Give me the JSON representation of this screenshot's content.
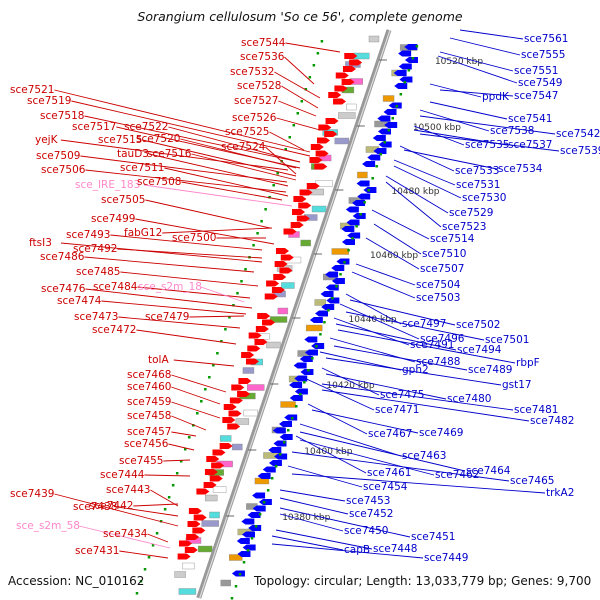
{
  "title": "Sorangium cellulosum 'So ce 56', complete genome",
  "footer": {
    "accession": "Accession: NC_010162",
    "summary": "Topology: circular; Length: 13,033,779 bp; Genes: 9,700"
  },
  "colors": {
    "backbone": "#999999",
    "forward_gene": "#ff0000",
    "reverse_gene": "#0000ff",
    "left_label": "#cc0000",
    "right_label": "#0000cc",
    "rna_label": "#ff88cc",
    "tick": "#009900",
    "kbp_label": "#333333"
  },
  "scale_ticks": [
    {
      "label": "10520 kbp"
    },
    {
      "label": "10500 kbp"
    },
    {
      "label": "10480 kbp"
    },
    {
      "label": "10460 kbp"
    },
    {
      "label": "10440 kbp"
    },
    {
      "label": "10420 kbp"
    },
    {
      "label": "10400 kbp"
    },
    {
      "label": "10380 kbp"
    }
  ],
  "left_labels": [
    {
      "text": "sce7544",
      "kind": "gene"
    },
    {
      "text": "sce7536",
      "kind": "gene"
    },
    {
      "text": "sce7532",
      "kind": "gene"
    },
    {
      "text": "sce7528",
      "kind": "gene"
    },
    {
      "text": "sce7521",
      "kind": "gene"
    },
    {
      "text": "sce7527",
      "kind": "gene"
    },
    {
      "text": "sce7519",
      "kind": "gene"
    },
    {
      "text": "sce7526",
      "kind": "gene"
    },
    {
      "text": "sce7518",
      "kind": "gene"
    },
    {
      "text": "sce7517",
      "kind": "gene"
    },
    {
      "text": "sce7522",
      "kind": "gene"
    },
    {
      "text": "sce7525",
      "kind": "gene"
    },
    {
      "text": "yejK",
      "kind": "gene"
    },
    {
      "text": "sce7515",
      "kind": "gene"
    },
    {
      "text": "sce7520",
      "kind": "gene"
    },
    {
      "text": "sce7524",
      "kind": "gene"
    },
    {
      "text": "sce7509",
      "kind": "gene"
    },
    {
      "text": "tauD3",
      "kind": "gene"
    },
    {
      "text": "sce7516",
      "kind": "gene"
    },
    {
      "text": "sce7506",
      "kind": "gene"
    },
    {
      "text": "sce7511",
      "kind": "gene"
    },
    {
      "text": "sce_IRE_183",
      "kind": "rna"
    },
    {
      "text": "sce7508",
      "kind": "gene"
    },
    {
      "text": "sce7505",
      "kind": "gene"
    },
    {
      "text": "sce7499",
      "kind": "gene"
    },
    {
      "text": "fabG12",
      "kind": "gene"
    },
    {
      "text": "sce7493",
      "kind": "gene"
    },
    {
      "text": "sce7500",
      "kind": "gene"
    },
    {
      "text": "ftsI3",
      "kind": "gene"
    },
    {
      "text": "sce7492",
      "kind": "gene"
    },
    {
      "text": "sce7486",
      "kind": "gene"
    },
    {
      "text": "sce7485",
      "kind": "gene"
    },
    {
      "text": "sce7484",
      "kind": "gene"
    },
    {
      "text": "sce_s2m_18",
      "kind": "rna"
    },
    {
      "text": "sce7476",
      "kind": "gene"
    },
    {
      "text": "sce7474",
      "kind": "gene"
    },
    {
      "text": "sce7473",
      "kind": "gene"
    },
    {
      "text": "sce7479",
      "kind": "gene"
    },
    {
      "text": "sce7472",
      "kind": "gene"
    },
    {
      "text": "tolA",
      "kind": "gene"
    },
    {
      "text": "sce7468",
      "kind": "gene"
    },
    {
      "text": "sce7460",
      "kind": "gene"
    },
    {
      "text": "sce7459",
      "kind": "gene"
    },
    {
      "text": "sce7458",
      "kind": "gene"
    },
    {
      "text": "sce7457",
      "kind": "gene"
    },
    {
      "text": "sce7456",
      "kind": "gene"
    },
    {
      "text": "sce7455",
      "kind": "gene"
    },
    {
      "text": "sce7444",
      "kind": "gene"
    },
    {
      "text": "sce7443",
      "kind": "gene"
    },
    {
      "text": "sce7439",
      "kind": "gene"
    },
    {
      "text": "sce7438",
      "kind": "gene"
    },
    {
      "text": "sce7442",
      "kind": "gene"
    },
    {
      "text": "sce_s2m_58",
      "kind": "rna"
    },
    {
      "text": "sce7434",
      "kind": "gene"
    },
    {
      "text": "sce7431",
      "kind": "gene"
    }
  ],
  "right_labels": [
    {
      "text": "sce7561"
    },
    {
      "text": "sce7555"
    },
    {
      "text": "sce7551"
    },
    {
      "text": "sce7549"
    },
    {
      "text": "ppdK"
    },
    {
      "text": "sce7547"
    },
    {
      "text": "sce7541"
    },
    {
      "text": "sce7538"
    },
    {
      "text": "sce7542"
    },
    {
      "text": "sce7535"
    },
    {
      "text": "sce7537"
    },
    {
      "text": "sce7539"
    },
    {
      "text": "sce7533"
    },
    {
      "text": "sce7534"
    },
    {
      "text": "sce7531"
    },
    {
      "text": "sce7530"
    },
    {
      "text": "sce7529"
    },
    {
      "text": "sce7523"
    },
    {
      "text": "sce7514"
    },
    {
      "text": "sce7510"
    },
    {
      "text": "sce7507"
    },
    {
      "text": "sce7504"
    },
    {
      "text": "sce7503"
    },
    {
      "text": "sce7497"
    },
    {
      "text": "sce7502"
    },
    {
      "text": "sce7496"
    },
    {
      "text": "sce7501"
    },
    {
      "text": "sce7491"
    },
    {
      "text": "sce7494"
    },
    {
      "text": "rbpF"
    },
    {
      "text": "sce7488"
    },
    {
      "text": "sce7489"
    },
    {
      "text": "gph2"
    },
    {
      "text": "gst17"
    },
    {
      "text": "sce7475"
    },
    {
      "text": "sce7480"
    },
    {
      "text": "sce7471"
    },
    {
      "text": "sce7481"
    },
    {
      "text": "sce7482"
    },
    {
      "text": "sce7467"
    },
    {
      "text": "sce7469"
    },
    {
      "text": "sce7463"
    },
    {
      "text": "sce7464"
    },
    {
      "text": "sce7461"
    },
    {
      "text": "sce7462"
    },
    {
      "text": "sce7465"
    },
    {
      "text": "sce7454"
    },
    {
      "text": "trkA2"
    },
    {
      "text": "sce7453"
    },
    {
      "text": "sce7452"
    },
    {
      "text": "sce7451"
    },
    {
      "text": "sce7450"
    },
    {
      "text": "sce7448"
    },
    {
      "text": "capB"
    },
    {
      "text": "sce7449"
    }
  ]
}
